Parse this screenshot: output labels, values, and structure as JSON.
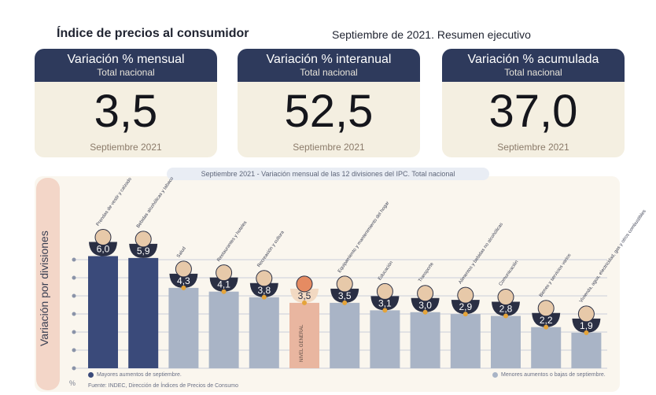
{
  "header": {
    "title": "Índice de precios al consumidor",
    "subtitle": "Septiembre de 2021. Resumen ejecutivo"
  },
  "cards": [
    {
      "title": "Variación % mensual",
      "sub": "Total nacional",
      "value": "3,5",
      "period": "Septiembre 2021"
    },
    {
      "title": "Variación % interanual",
      "sub": "Total nacional",
      "value": "52,5",
      "period": "Septiembre 2021"
    },
    {
      "title": "Variación % acumulada",
      "sub": "Total nacional",
      "value": "37,0",
      "period": "Septiembre 2021"
    }
  ],
  "colors": {
    "navy": "#2e3a5c",
    "cream": "#f4efe1",
    "bar_high": "#3a4a7a",
    "bar_low": "#a9b4c6",
    "bar_general": "#e9b6a0",
    "value_bowl": "#2a2f44",
    "value_bowl_general": "#f2d9c2",
    "marker": "#e5a43a"
  },
  "chart_data": {
    "type": "bar",
    "title": "Septiembre 2021 - Variación mensual de las 12 divisiones del IPC. Total nacional",
    "ylabel": "Variación por divisiones",
    "yunit": "%",
    "ylim": [
      0,
      6.4
    ],
    "grid": true,
    "categories": [
      "Prendas de vestir y calzado",
      "Bebidas alcohólicas y tabaco",
      "Salud",
      "Restaurantes y hoteles",
      "Recreación y cultura",
      "NIVEL GENERAL",
      "Equipamiento y mantenimiento del hogar",
      "Educación",
      "Transporte",
      "Alimentos y bebidas no alcohólicas",
      "Comunicación",
      "Bienes y servicios varios",
      "Vivienda, agua, electricidad, gas y otros combustibles"
    ],
    "value_labels": [
      "6,0",
      "5,9",
      "4,3",
      "4,1",
      "3,8",
      "3,5",
      "3,5",
      "3,1",
      "3,0",
      "2,9",
      "2,8",
      "2,2",
      "1,9"
    ],
    "values": [
      6.0,
      5.9,
      4.3,
      4.1,
      3.8,
      3.5,
      3.5,
      3.1,
      3.0,
      2.9,
      2.8,
      2.2,
      1.9
    ],
    "groups": [
      "high",
      "high",
      "low",
      "low",
      "low",
      "general",
      "low",
      "low",
      "low",
      "low",
      "low",
      "low",
      "low"
    ],
    "legend": [
      {
        "label": "Mayores aumentos de septiembre.",
        "group": "high"
      },
      {
        "label": "Menores aumentos o bajas de septiembre.",
        "group": "low"
      }
    ],
    "source": "Fuente: INDEC, Dirección de Índices de Precios de Consumo"
  }
}
